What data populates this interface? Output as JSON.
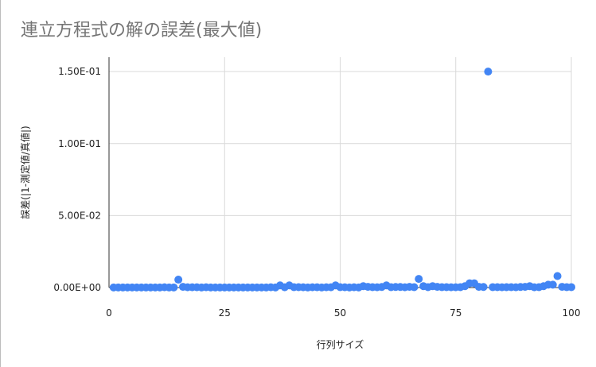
{
  "chart_data": {
    "type": "scatter",
    "title": "連立方程式の解の誤差(最大値)",
    "xlabel": "行列サイズ",
    "ylabel": "誤差(|1-測定値/真値|)",
    "xlim": [
      0,
      100
    ],
    "ylim": [
      0,
      0.16
    ],
    "grid": true,
    "legend": "none",
    "x_ticks": [
      "0",
      "25",
      "50",
      "75",
      "100"
    ],
    "y_ticks": [
      "0.00E+00",
      "5.00E-02",
      "1.00E-01",
      "1.50E-01"
    ],
    "marker_color": "#4285f4",
    "points": [
      [
        1,
        0.0001
      ],
      [
        2,
        0.0001
      ],
      [
        3,
        0.0001
      ],
      [
        4,
        0.0001
      ],
      [
        5,
        0.0001
      ],
      [
        6,
        0.0001
      ],
      [
        7,
        0.0001
      ],
      [
        8,
        0.0001
      ],
      [
        9,
        0.0001
      ],
      [
        10,
        0.0001
      ],
      [
        11,
        0.0001
      ],
      [
        12,
        0.0002
      ],
      [
        13,
        0.0001
      ],
      [
        14,
        0.0001
      ],
      [
        15,
        0.0055
      ],
      [
        16,
        0.0005
      ],
      [
        17,
        0.0002
      ],
      [
        18,
        0.0002
      ],
      [
        19,
        0.0002
      ],
      [
        20,
        0.0001
      ],
      [
        21,
        0.0002
      ],
      [
        22,
        0.0001
      ],
      [
        23,
        0.0001
      ],
      [
        24,
        0.0001
      ],
      [
        25,
        0.0001
      ],
      [
        26,
        0.0001
      ],
      [
        27,
        0.0001
      ],
      [
        28,
        0.0001
      ],
      [
        29,
        0.0001
      ],
      [
        30,
        0.0001
      ],
      [
        31,
        0.0001
      ],
      [
        32,
        0.0001
      ],
      [
        33,
        0.0001
      ],
      [
        34,
        0.0001
      ],
      [
        35,
        0.0002
      ],
      [
        36,
        0.0001
      ],
      [
        37,
        0.0015
      ],
      [
        38,
        0.0002
      ],
      [
        39,
        0.0015
      ],
      [
        40,
        0.0003
      ],
      [
        41,
        0.0003
      ],
      [
        42,
        0.0002
      ],
      [
        43,
        0.0001
      ],
      [
        44,
        0.0002
      ],
      [
        45,
        0.0002
      ],
      [
        46,
        0.0001
      ],
      [
        47,
        0.0002
      ],
      [
        48,
        0.0002
      ],
      [
        49,
        0.0015
      ],
      [
        50,
        0.0003
      ],
      [
        51,
        0.0002
      ],
      [
        52,
        0.0001
      ],
      [
        53,
        0.0002
      ],
      [
        54,
        0.0001
      ],
      [
        55,
        0.001
      ],
      [
        56,
        0.0005
      ],
      [
        57,
        0.0003
      ],
      [
        58,
        0.0002
      ],
      [
        59,
        0.0004
      ],
      [
        60,
        0.0015
      ],
      [
        61,
        0.0003
      ],
      [
        62,
        0.0004
      ],
      [
        63,
        0.0004
      ],
      [
        64,
        0.0002
      ],
      [
        65,
        0.0005
      ],
      [
        66,
        0.0003
      ],
      [
        67,
        0.006
      ],
      [
        68,
        0.001
      ],
      [
        69,
        0.0003
      ],
      [
        70,
        0.001
      ],
      [
        71,
        0.0005
      ],
      [
        72,
        0.0003
      ],
      [
        73,
        0.0003
      ],
      [
        74,
        0.0002
      ],
      [
        75,
        0.0002
      ],
      [
        76,
        0.0003
      ],
      [
        77,
        0.001
      ],
      [
        78,
        0.003
      ],
      [
        79,
        0.003
      ],
      [
        80,
        0.0005
      ],
      [
        81,
        0.0004
      ],
      [
        82,
        0.15
      ],
      [
        83,
        0.0003
      ],
      [
        84,
        0.0003
      ],
      [
        85,
        0.0002
      ],
      [
        86,
        0.0003
      ],
      [
        87,
        0.0003
      ],
      [
        88,
        0.0002
      ],
      [
        89,
        0.0004
      ],
      [
        90,
        0.0005
      ],
      [
        91,
        0.001
      ],
      [
        92,
        0.0002
      ],
      [
        93,
        0.0003
      ],
      [
        94,
        0.001
      ],
      [
        95,
        0.002
      ],
      [
        96,
        0.002
      ],
      [
        97,
        0.008
      ],
      [
        98,
        0.0005
      ],
      [
        99,
        0.0003
      ],
      [
        100,
        0.0003
      ]
    ]
  }
}
